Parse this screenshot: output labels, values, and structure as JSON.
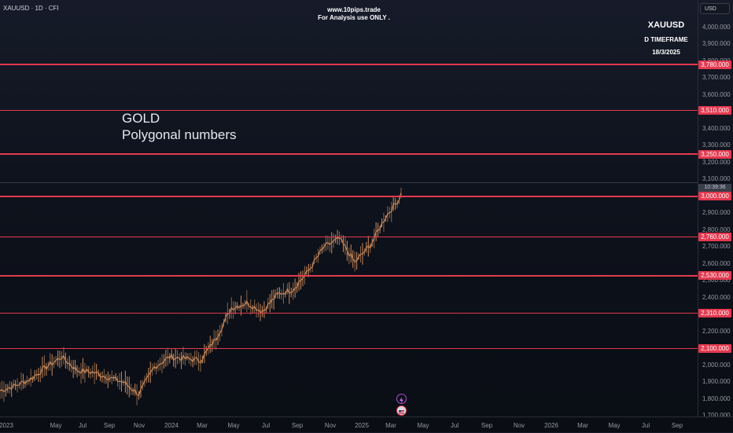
{
  "header": {
    "symbol_info": "XAUUSD · 1D · CFI",
    "currency": "USD"
  },
  "watermark": {
    "line1": "www.10pips.trade",
    "line2": "For Analysis use ONLY ."
  },
  "side_info": {
    "symbol": "XAUUSD",
    "timeframe": "D TIMEFRAME",
    "date": "18/3/2025"
  },
  "annotation": {
    "title": "GOLD",
    "subtitle": "Polygonal numbers"
  },
  "price_axis": {
    "ticks": [
      "4,000.000",
      "3,900.000",
      "3,800.000",
      "3,700.000",
      "3,600.000",
      "3,500.000",
      "3,400.000",
      "3,300.000",
      "3,200.000",
      "3,100.000",
      "2,900.000",
      "2,800.000",
      "2,700.000",
      "2,600.000",
      "2,500.000",
      "2,400.000",
      "2,300.000",
      "2,200.000",
      "2,100.000",
      "2,000.000",
      "1,900.000",
      "1,800.000",
      "1,700.000"
    ],
    "countdown": "10:39:36"
  },
  "levels": [
    "3,780.000",
    "3,510.000",
    "3,250.000",
    "3,000.000",
    "2,760.000",
    "2,530.000",
    "2,310.000",
    "2,100.000"
  ],
  "time_axis": {
    "ticks": [
      "2023",
      "May",
      "Jul",
      "Sep",
      "Nov",
      "2024",
      "Mar",
      "May",
      "Jul",
      "Sep",
      "Nov",
      "2025",
      "Mar",
      "May",
      "Jul",
      "Sep",
      "Nov",
      "2026",
      "Mar",
      "May",
      "Jul",
      "Sep"
    ]
  },
  "colors": {
    "level_line": "#e3394f",
    "candle_up": "#c9895a",
    "candle_down": "#8a6448",
    "background": "#0e121c"
  },
  "icons": [
    "lightning-icon",
    "flag-icon"
  ],
  "chart_data": {
    "type": "line",
    "title": "",
    "price_range": [
      1660,
      4060
    ],
    "x": [
      "2023-01",
      "2023-02",
      "2023-03",
      "2023-04",
      "2023-05",
      "2023-06",
      "2023-07",
      "2023-08",
      "2023-09",
      "2023-10",
      "2023-11",
      "2023-12",
      "2024-01",
      "2024-02",
      "2024-03",
      "2024-04",
      "2024-05",
      "2024-06",
      "2024-07",
      "2024-08",
      "2024-09",
      "2024-10",
      "2024-11",
      "2024-12",
      "2025-01",
      "2025-02",
      "2025-03"
    ],
    "series": [
      {
        "values": [
          1850,
          1880,
          1920,
          1990,
          2050,
          1970,
          1960,
          1930,
          1900,
          1830,
          1990,
          2050,
          2040,
          2030,
          2160,
          2340,
          2370,
          2320,
          2420,
          2450,
          2560,
          2700,
          2750,
          2610,
          2710,
          2880,
          3000
        ]
      }
    ]
  }
}
